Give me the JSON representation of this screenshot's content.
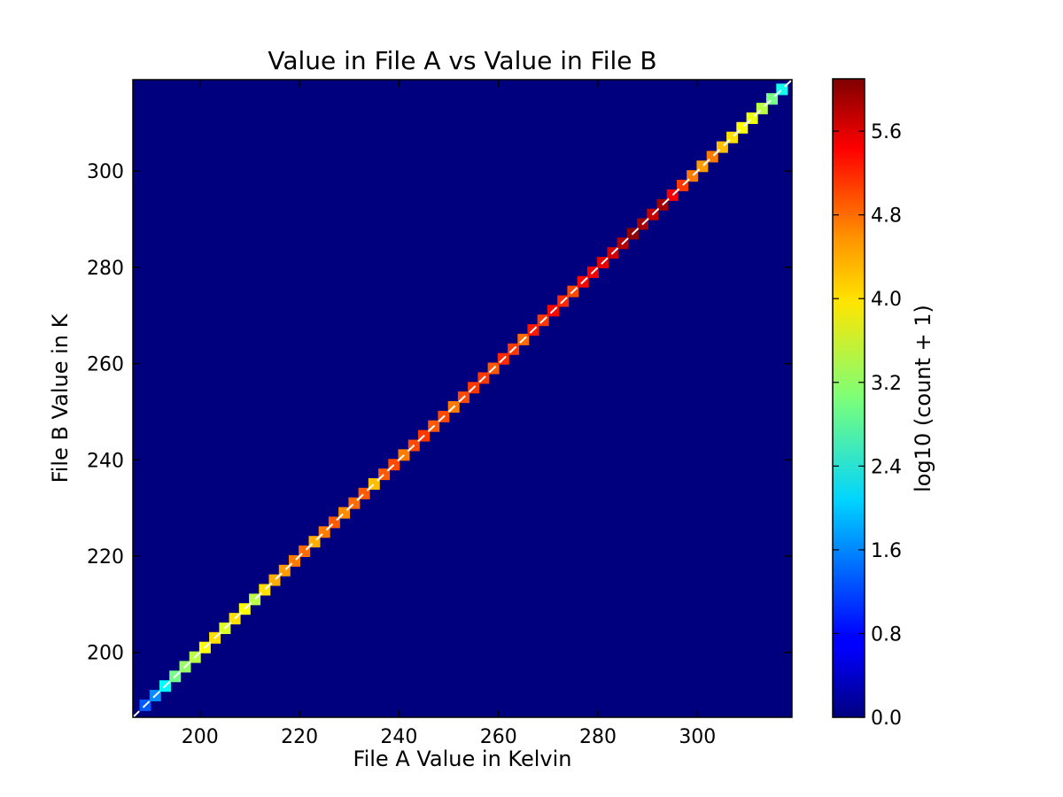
{
  "chart_data": {
    "type": "heatmap",
    "title": "Value in File A vs Value in File B",
    "xlabel": "File A Value in Kelvin",
    "ylabel": "File B Value in K",
    "xlim": [
      186.5,
      319
    ],
    "ylim": [
      186.5,
      319
    ],
    "x_ticks": [
      200,
      220,
      240,
      260,
      280,
      300
    ],
    "y_ticks": [
      200,
      220,
      240,
      260,
      280,
      300
    ],
    "background_color": "#00007f",
    "reference_line": {
      "from": [
        186.5,
        186.5
      ],
      "to": [
        319,
        319
      ],
      "color": "#ffffff",
      "style": "dashed"
    },
    "colorbar": {
      "label": "log10 (count + 1)",
      "range": [
        0.0,
        6.1
      ],
      "ticks": [
        "0.0",
        "0.8",
        "1.6",
        "2.4",
        "3.2",
        "4.0",
        "4.8",
        "5.6"
      ],
      "colormap": "jet"
    },
    "series": [
      {
        "x": [
          189,
          191,
          193,
          195,
          197,
          199,
          201,
          203,
          205,
          207,
          209,
          211,
          213,
          215,
          217,
          219,
          221,
          223,
          225,
          227,
          229,
          231,
          233,
          235,
          237,
          239,
          241,
          243,
          245,
          247,
          249,
          251,
          253,
          255,
          257,
          259,
          261,
          263,
          265,
          267,
          269,
          271,
          273,
          275,
          277,
          279,
          281,
          283,
          285,
          287,
          289,
          291,
          293,
          295,
          297,
          299,
          301,
          303,
          305,
          307,
          309,
          311,
          313,
          315,
          317
        ],
        "y": [
          189,
          191,
          193,
          195,
          197,
          199,
          201,
          203,
          205,
          207,
          209,
          211,
          213,
          215,
          217,
          219,
          221,
          223,
          225,
          227,
          229,
          231,
          233,
          235,
          237,
          239,
          241,
          243,
          245,
          247,
          249,
          251,
          253,
          255,
          257,
          259,
          261,
          263,
          265,
          267,
          269,
          271,
          273,
          275,
          277,
          279,
          281,
          283,
          285,
          287,
          289,
          291,
          293,
          295,
          297,
          299,
          301,
          303,
          305,
          307,
          309,
          311,
          313,
          315,
          317
        ],
        "values": [
          1.3,
          1.6,
          2.3,
          3.0,
          3.2,
          3.4,
          3.8,
          4.0,
          3.6,
          4.0,
          3.8,
          3.4,
          4.0,
          4.3,
          4.4,
          4.6,
          4.7,
          4.3,
          4.6,
          4.8,
          4.5,
          4.7,
          4.8,
          4.2,
          4.8,
          4.9,
          4.6,
          4.9,
          5.0,
          4.8,
          4.9,
          4.6,
          4.9,
          5.0,
          5.0,
          4.8,
          5.1,
          5.0,
          4.7,
          5.2,
          5.0,
          5.3,
          5.1,
          4.9,
          5.3,
          5.4,
          5.5,
          5.6,
          5.8,
          6.0,
          5.9,
          5.7,
          5.9,
          5.4,
          5.0,
          4.6,
          4.4,
          4.6,
          4.2,
          4.0,
          3.8,
          3.7,
          3.4,
          3.0,
          2.4
        ]
      }
    ]
  }
}
